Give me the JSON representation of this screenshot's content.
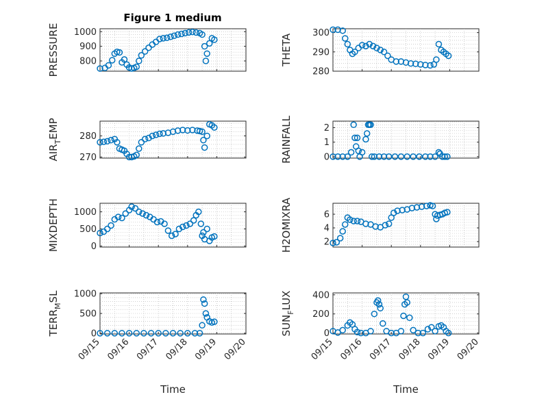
{
  "figure": {
    "title": "Figure 1 medium"
  },
  "chart_data": [
    {
      "type": "scatter",
      "ylabel": "PRESSURE",
      "ylim": [
        730,
        1020
      ],
      "yticks": [
        800,
        900,
        1000
      ],
      "grid": true,
      "color": "#0072BD",
      "x": [
        "09/15 00:00",
        "09/15 04:00",
        "09/15 07:00",
        "09/15 10:00",
        "09/15 12:00",
        "09/15 14:00",
        "09/15 16:00",
        "09/15 18:00",
        "09/15 20:00",
        "09/15 22:00",
        "09/16 00:00",
        "09/16 02:00",
        "09/16 04:00",
        "09/16 06:00",
        "09/16 08:00",
        "09/16 10:00",
        "09/16 13:00",
        "09/16 16:00",
        "09/16 19:00",
        "09/16 22:00",
        "09/17 01:00",
        "09/17 04:00",
        "09/17 07:00",
        "09/17 10:00",
        "09/17 13:00",
        "09/17 16:00",
        "09/17 19:00",
        "09/17 22:00",
        "09/18 01:00",
        "09/18 04:00",
        "09/18 07:00",
        "09/18 10:00",
        "09/18 12:00",
        "09/18 14:00",
        "09/18 15:00",
        "09/18 16:00",
        "09/18 18:00",
        "09/18 20:00",
        "09/18 22:00"
      ],
      "y": [
        748,
        752,
        770,
        805,
        850,
        862,
        858,
        790,
        810,
        775,
        755,
        748,
        752,
        760,
        800,
        838,
        865,
        890,
        912,
        930,
        950,
        955,
        958,
        965,
        972,
        980,
        985,
        990,
        995,
        998,
        994,
        990,
        980,
        900,
        800,
        850,
        920,
        955,
        945
      ]
    },
    {
      "type": "scatter",
      "ylabel": "THETA",
      "ylim": [
        280,
        302
      ],
      "yticks": [
        280,
        290,
        300
      ],
      "grid": true,
      "color": "#0072BD",
      "x": [
        "09/15 00:00",
        "09/15 04:00",
        "09/15 08:00",
        "09/15 10:00",
        "09/15 12:00",
        "09/15 14:00",
        "09/15 16:00",
        "09/15 18:00",
        "09/15 21:00",
        "09/16 00:00",
        "09/16 03:00",
        "09/16 06:00",
        "09/16 09:00",
        "09/16 12:00",
        "09/16 15:00",
        "09/16 18:00",
        "09/16 21:00",
        "09/17 00:00",
        "09/17 04:00",
        "09/17 08:00",
        "09/17 12:00",
        "09/17 16:00",
        "09/17 20:00",
        "09/18 00:00",
        "09/18 04:00",
        "09/18 08:00",
        "09/18 11:00",
        "09/18 13:00",
        "09/18 15:00",
        "09/18 17:00",
        "09/18 19:00",
        "09/18 21:00",
        "09/18 23:00"
      ],
      "y": [
        301.5,
        301.5,
        301,
        297,
        294,
        291,
        289,
        290,
        292,
        293.5,
        293,
        294,
        293,
        292,
        291,
        290,
        288,
        286,
        285,
        285,
        284.5,
        284,
        283.8,
        283.5,
        283.2,
        283,
        283.5,
        286,
        294,
        291,
        290,
        289,
        288
      ]
    },
    {
      "type": "scatter",
      "ylabel": "AIR_TEMP",
      "ylim": [
        269.5,
        287
      ],
      "yticks": [
        270,
        280
      ],
      "grid": true,
      "color": "#0072BD",
      "x": [
        "09/15 00:00",
        "09/15 03:00",
        "09/15 06:00",
        "09/15 09:00",
        "09/15 12:00",
        "09/15 14:00",
        "09/15 16:00",
        "09/15 18:00",
        "09/15 20:00",
        "09/15 22:00",
        "09/16 00:00",
        "09/16 02:00",
        "09/16 04:00",
        "09/16 06:00",
        "09/16 08:00",
        "09/16 10:00",
        "09/16 13:00",
        "09/16 16:00",
        "09/16 19:00",
        "09/16 22:00",
        "09/17 01:00",
        "09/17 04:00",
        "09/17 08:00",
        "09/17 12:00",
        "09/17 16:00",
        "09/17 20:00",
        "09/18 00:00",
        "09/18 04:00",
        "09/18 08:00",
        "09/18 10:00",
        "09/18 12:00",
        "09/18 13:00",
        "09/18 14:00",
        "09/18 16:00",
        "09/18 18:00",
        "09/18 20:00",
        "09/18 22:00"
      ],
      "y": [
        277,
        277.2,
        277.5,
        278,
        278.5,
        277,
        274,
        273.5,
        273,
        271.5,
        270,
        270,
        270.3,
        271,
        274,
        277,
        278.5,
        279,
        280,
        280.5,
        281,
        281.2,
        281.5,
        282,
        282.5,
        282.8,
        282.6,
        282.8,
        282.5,
        282.3,
        282,
        278,
        274.5,
        280,
        285.5,
        285,
        284
      ]
    },
    {
      "type": "scatter",
      "ylabel": "RAINFALL",
      "ylim": [
        -0.1,
        2.45
      ],
      "yticks": [
        0,
        1,
        2
      ],
      "grid": true,
      "color": "#0072BD",
      "x": [
        "09/15 00:00",
        "09/15 04:00",
        "09/15 08:00",
        "09/15 12:00",
        "09/15 15:00",
        "09/15 17:00",
        "09/15 18:00",
        "09/15 19:00",
        "09/15 20:00",
        "09/15 21:00",
        "09/15 22:00",
        "09/16 00:00",
        "09/16 03:00",
        "09/16 04:00",
        "09/16 05:00",
        "09/16 06:00",
        "09/16 07:00",
        "09/16 08:00",
        "09/16 10:00",
        "09/16 14:00",
        "09/16 18:00",
        "09/16 22:00",
        "09/17 03:00",
        "09/17 08:00",
        "09/17 13:00",
        "09/17 18:00",
        "09/17 23:00",
        "09/18 04:00",
        "09/18 08:00",
        "09/18 12:00",
        "09/18 15:00",
        "09/18 16:00",
        "09/18 18:00",
        "09/18 20:00",
        "09/18 22:00"
      ],
      "y": [
        0,
        0,
        0,
        0,
        0.3,
        2.2,
        1.3,
        0.7,
        1.3,
        0.4,
        0,
        0.3,
        1.2,
        1.6,
        2.2,
        2.2,
        2.2,
        0,
        0,
        0,
        0,
        0,
        0,
        0,
        0,
        0,
        0,
        0,
        0,
        0,
        0.3,
        0.2,
        0,
        0,
        0
      ]
    },
    {
      "type": "scatter",
      "ylabel": "MIXDEPTH",
      "ylim": [
        -30,
        1250
      ],
      "yticks": [
        0,
        500,
        1000
      ],
      "grid": true,
      "color": "#0072BD",
      "x": [
        "09/15 00:00",
        "09/15 03:00",
        "09/15 06:00",
        "09/15 09:00",
        "09/15 12:00",
        "09/15 15:00",
        "09/15 18:00",
        "09/15 21:00",
        "09/16 00:00",
        "09/16 02:00",
        "09/16 05:00",
        "09/16 08:00",
        "09/16 11:00",
        "09/16 14:00",
        "09/16 17:00",
        "09/16 20:00",
        "09/16 23:00",
        "09/17 02:00",
        "09/17 05:00",
        "09/17 08:00",
        "09/17 11:00",
        "09/17 14:00",
        "09/17 17:00",
        "09/17 20:00",
        "09/17 23:00",
        "09/18 02:00",
        "09/18 05:00",
        "09/18 07:00",
        "09/18 09:00",
        "09/18 11:00",
        "09/18 12:00",
        "09/18 13:00",
        "09/18 14:00",
        "09/18 16:00",
        "09/18 18:00",
        "09/18 20:00",
        "09/18 22:00"
      ],
      "y": [
        380,
        420,
        500,
        600,
        780,
        850,
        820,
        950,
        1050,
        1150,
        1100,
        1000,
        950,
        900,
        850,
        780,
        700,
        720,
        650,
        450,
        300,
        350,
        500,
        560,
        600,
        650,
        750,
        900,
        1000,
        650,
        300,
        400,
        200,
        500,
        150,
        250,
        280
      ]
    },
    {
      "type": "scatter",
      "ylabel": "H2OMIXRA",
      "ylim": [
        1.2,
        7.6
      ],
      "yticks": [
        2,
        4,
        6
      ],
      "grid": true,
      "color": "#0072BD",
      "x": [
        "09/15 00:00",
        "09/15 03:00",
        "09/15 06:00",
        "09/15 08:00",
        "09/15 10:00",
        "09/15 12:00",
        "09/15 14:00",
        "09/15 17:00",
        "09/15 20:00",
        "09/15 23:00",
        "09/16 03:00",
        "09/16 07:00",
        "09/16 11:00",
        "09/16 15:00",
        "09/16 19:00",
        "09/16 22:00",
        "09/17 00:00",
        "09/17 02:00",
        "09/17 05:00",
        "09/17 09:00",
        "09/17 13:00",
        "09/17 17:00",
        "09/17 21:00",
        "09/18 01:00",
        "09/18 05:00",
        "09/18 08:00",
        "09/18 10:00",
        "09/18 12:00",
        "09/18 13:00",
        "09/18 14:00",
        "09/18 16:00",
        "09/18 18:00",
        "09/18 20:00",
        "09/18 22:00"
      ],
      "y": [
        1.8,
        1.9,
        2.5,
        3.5,
        4.5,
        5.5,
        5.2,
        5,
        5,
        4.9,
        4.6,
        4.5,
        4.2,
        4.1,
        4.4,
        4.6,
        5.5,
        6.2,
        6.5,
        6.6,
        6.7,
        6.9,
        7,
        7.1,
        7.2,
        7.3,
        7.2,
        6,
        5.3,
        5.8,
        5.9,
        6,
        6.2,
        6.3
      ]
    },
    {
      "type": "scatter",
      "ylabel": "TERR_MSL",
      "ylim": [
        -20,
        1020
      ],
      "yticks": [
        0,
        500,
        1000
      ],
      "grid": true,
      "color": "#0072BD",
      "x": [
        "09/15 00:00",
        "09/15 06:00",
        "09/15 12:00",
        "09/15 18:00",
        "09/16 00:00",
        "09/16 06:00",
        "09/16 12:00",
        "09/16 18:00",
        "09/17 00:00",
        "09/17 06:00",
        "09/17 12:00",
        "09/17 18:00",
        "09/18 00:00",
        "09/18 06:00",
        "09/18 10:00",
        "09/18 12:00",
        "09/18 13:00",
        "09/18 14:00",
        "09/18 15:00",
        "09/18 16:00",
        "09/18 18:00",
        "09/18 20:00",
        "09/18 22:00"
      ],
      "y": [
        0,
        0,
        0,
        0,
        0,
        0,
        0,
        0,
        0,
        0,
        0,
        0,
        0,
        0,
        0,
        200,
        850,
        750,
        500,
        400,
        300,
        270,
        290
      ]
    },
    {
      "type": "scatter",
      "ylabel": "SUN_FLUX",
      "ylim": [
        -10,
        420
      ],
      "yticks": [
        0,
        200,
        400
      ],
      "grid": true,
      "color": "#0072BD",
      "x": [
        "09/15 00:00",
        "09/15 04:00",
        "09/15 08:00",
        "09/15 12:00",
        "09/15 14:00",
        "09/15 16:00",
        "09/15 18:00",
        "09/15 20:00",
        "09/15 23:00",
        "09/16 03:00",
        "09/16 07:00",
        "09/16 10:00",
        "09/16 12:00",
        "09/16 13:00",
        "09/16 14:00",
        "09/16 15:00",
        "09/16 17:00",
        "09/16 20:00",
        "09/17 00:00",
        "09/17 04:00",
        "09/17 08:00",
        "09/17 10:00",
        "09/17 11:00",
        "09/17 12:00",
        "09/17 13:00",
        "09/17 15:00",
        "09/17 18:00",
        "09/17 22:00",
        "09/18 02:00",
        "09/18 06:00",
        "09/18 09:00",
        "09/18 12:00",
        "09/18 15:00",
        "09/18 17:00",
        "09/18 19:00",
        "09/18 21:00",
        "09/18 23:00"
      ],
      "y": [
        20,
        5,
        30,
        80,
        110,
        90,
        40,
        10,
        0,
        0,
        20,
        200,
        320,
        340,
        300,
        260,
        100,
        20,
        0,
        0,
        20,
        180,
        300,
        380,
        320,
        160,
        30,
        0,
        0,
        40,
        60,
        20,
        70,
        80,
        60,
        20,
        0
      ]
    }
  ],
  "xaxis": {
    "ticks": [
      "09/15",
      "09/16",
      "09/17",
      "09/18",
      "09/19",
      "09/20"
    ],
    "range": [
      "09/15 00:00",
      "09/20 00:00"
    ],
    "label": "Time"
  }
}
